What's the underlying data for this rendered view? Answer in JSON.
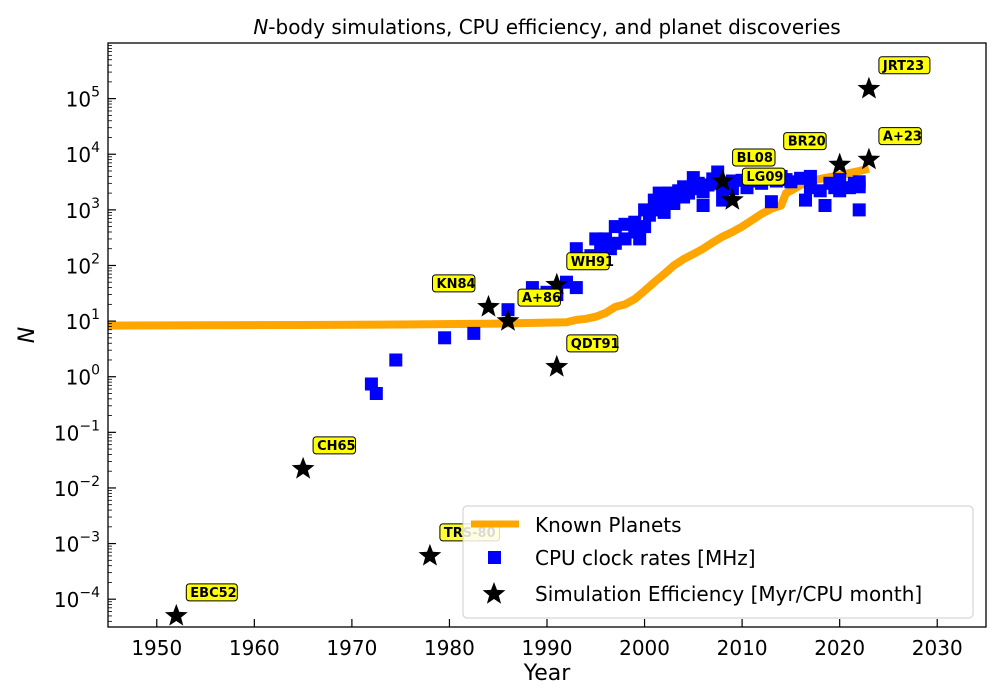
{
  "chart_data": {
    "type": "scatter",
    "title": "N-body simulations, CPU efficiency, and planet discoveries",
    "title_italic": "N",
    "title_rest": "-body simulations, CPU efficiency, and planet discoveries",
    "xlabel": "Year",
    "ylabel": "N",
    "xlim": [
      1945,
      2035
    ],
    "ylim_log10": [
      -4.5,
      6
    ],
    "y_scale": "log",
    "x_ticks": [
      1950,
      1960,
      1970,
      1980,
      1990,
      2000,
      2010,
      2020,
      2030
    ],
    "x_tick_labels": [
      "1950",
      "1960",
      "1970",
      "1980",
      "1990",
      "2000",
      "2010",
      "2020",
      "2030"
    ],
    "y_tick_exponents": [
      -4,
      -3,
      -2,
      -1,
      0,
      1,
      2,
      3,
      4,
      5
    ],
    "y_tick_labels": [
      {
        "base": "10",
        "exp": "−4"
      },
      {
        "base": "10",
        "exp": "−3"
      },
      {
        "base": "10",
        "exp": "−2"
      },
      {
        "base": "10",
        "exp": "−1"
      },
      {
        "base": "10",
        "exp": "0"
      },
      {
        "base": "10",
        "exp": "1"
      },
      {
        "base": "10",
        "exp": "2"
      },
      {
        "base": "10",
        "exp": "3"
      },
      {
        "base": "10",
        "exp": "4"
      },
      {
        "base": "10",
        "exp": "5"
      }
    ],
    "legend_position": "lower-right",
    "series": [
      {
        "name": "Known Planets",
        "kind": "line",
        "color": "#FFA500",
        "points": [
          [
            1945,
            8.3
          ],
          [
            1955,
            8.4
          ],
          [
            1965,
            8.5
          ],
          [
            1975,
            8.7
          ],
          [
            1985,
            9.0
          ],
          [
            1992,
            9.5
          ],
          [
            1993,
            10.5
          ],
          [
            1994,
            11
          ],
          [
            1995,
            12
          ],
          [
            1996,
            14
          ],
          [
            1997,
            18
          ],
          [
            1998,
            20
          ],
          [
            1999,
            25
          ],
          [
            2000,
            35
          ],
          [
            2001,
            50
          ],
          [
            2002,
            70
          ],
          [
            2003,
            100
          ],
          [
            2004,
            130
          ],
          [
            2005,
            160
          ],
          [
            2006,
            200
          ],
          [
            2007,
            260
          ],
          [
            2008,
            330
          ],
          [
            2009,
            400
          ],
          [
            2010,
            500
          ],
          [
            2011,
            650
          ],
          [
            2012,
            850
          ],
          [
            2013,
            1050
          ],
          [
            2014,
            1200
          ],
          [
            2014.5,
            2000
          ],
          [
            2015,
            2200
          ],
          [
            2016,
            2800
          ],
          [
            2017,
            3300
          ],
          [
            2018,
            3600
          ],
          [
            2019,
            3900
          ],
          [
            2020,
            4200
          ],
          [
            2021,
            4600
          ],
          [
            2022,
            5000
          ],
          [
            2023,
            5500
          ]
        ]
      },
      {
        "name": "CPU clock rates [MHz]",
        "kind": "scatter-square",
        "color": "#0000FF",
        "points": [
          [
            1972,
            0.74
          ],
          [
            1972.5,
            0.5
          ],
          [
            1974.5,
            2
          ],
          [
            1979.5,
            5
          ],
          [
            1982.5,
            6
          ],
          [
            1986,
            16
          ],
          [
            1988.5,
            40
          ],
          [
            1990,
            33
          ],
          [
            1991,
            30
          ],
          [
            1992,
            50
          ],
          [
            1993,
            200
          ],
          [
            1993,
            40
          ],
          [
            1994.5,
            150
          ],
          [
            1995,
            300
          ],
          [
            1995.5,
            200
          ],
          [
            1996,
            300
          ],
          [
            1996.5,
            200
          ],
          [
            1997,
            250
          ],
          [
            1997,
            500
          ],
          [
            1998,
            300
          ],
          [
            1998,
            550
          ],
          [
            1999,
            400
          ],
          [
            1999,
            600
          ],
          [
            1999.5,
            300
          ],
          [
            2000,
            500
          ],
          [
            2000,
            1000
          ],
          [
            2000.5,
            800
          ],
          [
            2001,
            1000
          ],
          [
            2001,
            1500
          ],
          [
            2001.5,
            2000
          ],
          [
            2002,
            900
          ],
          [
            2002,
            1400
          ],
          [
            2002.5,
            2000
          ],
          [
            2003,
            2000
          ],
          [
            2003,
            1300
          ],
          [
            2003.5,
            2200
          ],
          [
            2004,
            1700
          ],
          [
            2004,
            2600
          ],
          [
            2004.5,
            2000
          ],
          [
            2005,
            2400
          ],
          [
            2005,
            3800
          ],
          [
            2005.5,
            3000
          ],
          [
            2006,
            2100
          ],
          [
            2006,
            1200
          ],
          [
            2006.5,
            2800
          ],
          [
            2007,
            3000
          ],
          [
            2007,
            3600
          ],
          [
            2007.5,
            4800
          ],
          [
            2008,
            2500
          ],
          [
            2008,
            1500
          ],
          [
            2008.5,
            3000
          ],
          [
            2009,
            2400
          ],
          [
            2009,
            3300
          ],
          [
            2010,
            3400
          ],
          [
            2010.5,
            2500
          ],
          [
            2011,
            3300
          ],
          [
            2011.5,
            3500
          ],
          [
            2012,
            3000
          ],
          [
            2013,
            1400
          ],
          [
            2013.5,
            3300
          ],
          [
            2014,
            4000
          ],
          [
            2014.5,
            3500
          ],
          [
            2015,
            3200
          ],
          [
            2016,
            3700
          ],
          [
            2016.5,
            1500
          ],
          [
            2017,
            4000
          ],
          [
            2017,
            2500
          ],
          [
            2018,
            2200
          ],
          [
            2018.5,
            1200
          ],
          [
            2019,
            3000
          ],
          [
            2019.5,
            2500
          ],
          [
            2020,
            3500
          ],
          [
            2020,
            2200
          ],
          [
            2021,
            2500
          ],
          [
            2021.5,
            3000
          ],
          [
            2022,
            2600
          ],
          [
            2022,
            1000
          ],
          [
            2022,
            3200
          ]
        ]
      },
      {
        "name": "Simulation Efficiency [Myr/CPU month]",
        "kind": "scatter-star",
        "color": "#000000",
        "points": [
          {
            "x": 1952,
            "y": 5e-05,
            "label": "EBC52"
          },
          {
            "x": 1965,
            "y": 0.022,
            "label": "CH65"
          },
          {
            "x": 1978,
            "y": 0.0006,
            "label": "TRS-80"
          },
          {
            "x": 1984,
            "y": 18,
            "label": "KN84",
            "label_side": "left"
          },
          {
            "x": 1986,
            "y": 10,
            "label": "A+86"
          },
          {
            "x": 1991,
            "y": 45,
            "label": "WH91"
          },
          {
            "x": 1991,
            "y": 1.5,
            "label": "QDT91"
          },
          {
            "x": 2008,
            "y": 3300,
            "label": "BL08"
          },
          {
            "x": 2009,
            "y": 1500,
            "label": "LG09"
          },
          {
            "x": 2020,
            "y": 6500,
            "label": "BR20",
            "label_side": "left"
          },
          {
            "x": 2023,
            "y": 8000,
            "label": "A+23"
          },
          {
            "x": 2023,
            "y": 150000,
            "label": "JRT23"
          }
        ]
      }
    ]
  }
}
